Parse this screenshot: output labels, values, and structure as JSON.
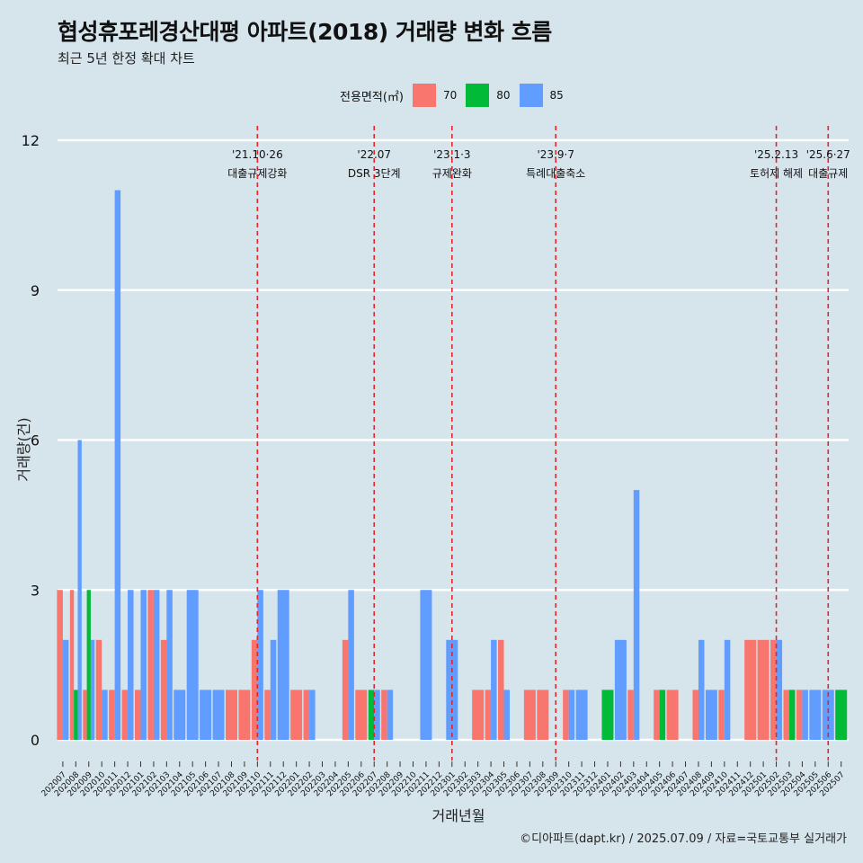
{
  "title": "협성휴포레경산대평 아파트(2018) 거래량 변화 흐름",
  "subtitle": "최근 5년 한정 확대 차트",
  "caption": "©디아파트(dapt.kr) / 2025.07.09 / 자료=국토교통부 실거래가",
  "legend": {
    "title": "전용면적(㎡)",
    "items": [
      {
        "label": "70",
        "color": "#f8766d"
      },
      {
        "label": "80",
        "color": "#00ba38"
      },
      {
        "label": "85",
        "color": "#619cff"
      }
    ]
  },
  "chart_data": {
    "type": "bar",
    "xlabel": "거래년월",
    "ylabel": "거래량(건)",
    "ylim": [
      0,
      12
    ],
    "yticks": [
      0,
      3,
      6,
      9,
      12
    ],
    "grid": true,
    "legend_position": "top",
    "categories": [
      "202007",
      "202008",
      "202009",
      "202010",
      "202011",
      "202012",
      "202101",
      "202102",
      "202103",
      "202104",
      "202105",
      "202106",
      "202107",
      "202108",
      "202109",
      "202110",
      "202111",
      "202112",
      "202201",
      "202202",
      "202203",
      "202204",
      "202205",
      "202206",
      "202207",
      "202208",
      "202209",
      "202210",
      "202211",
      "202212",
      "202301",
      "202302",
      "202303",
      "202304",
      "202305",
      "202306",
      "202307",
      "202308",
      "202309",
      "202310",
      "202311",
      "202312",
      "202401",
      "202402",
      "202403",
      "202404",
      "202405",
      "202406",
      "202407",
      "202408",
      "202409",
      "202410",
      "202411",
      "202412",
      "202501",
      "202502",
      "202503",
      "202504",
      "202505",
      "202506",
      "202507"
    ],
    "series": [
      {
        "name": "70",
        "color": "#f8766d",
        "values": [
          3,
          3,
          1,
          2,
          1,
          1,
          1,
          3,
          2,
          0,
          0,
          0,
          0,
          1,
          1,
          2,
          1,
          0,
          1,
          1,
          0,
          0,
          2,
          1,
          0,
          1,
          0,
          0,
          0,
          0,
          0,
          0,
          1,
          1,
          2,
          0,
          1,
          1,
          0,
          1,
          0,
          0,
          0,
          0,
          1,
          0,
          1,
          1,
          0,
          1,
          0,
          1,
          0,
          2,
          2,
          2,
          1,
          1,
          0,
          0,
          0
        ]
      },
      {
        "name": "80",
        "color": "#00ba38",
        "values": [
          0,
          1,
          3,
          0,
          0,
          0,
          0,
          0,
          0,
          0,
          0,
          0,
          0,
          0,
          0,
          0,
          0,
          0,
          0,
          0,
          0,
          0,
          0,
          0,
          1,
          0,
          0,
          0,
          0,
          0,
          0,
          0,
          0,
          0,
          0,
          0,
          0,
          0,
          0,
          0,
          0,
          0,
          1,
          0,
          0,
          0,
          1,
          0,
          0,
          0,
          0,
          0,
          0,
          0,
          0,
          0,
          1,
          0,
          0,
          0,
          1
        ]
      },
      {
        "name": "85",
        "color": "#619cff",
        "values": [
          2,
          6,
          2,
          1,
          11,
          3,
          3,
          3,
          3,
          1,
          3,
          1,
          1,
          0,
          0,
          3,
          2,
          3,
          0,
          1,
          0,
          0,
          3,
          0,
          1,
          1,
          0,
          0,
          3,
          0,
          2,
          0,
          0,
          2,
          1,
          0,
          0,
          0,
          0,
          1,
          1,
          0,
          0,
          2,
          5,
          0,
          0,
          0,
          0,
          2,
          1,
          2,
          0,
          0,
          0,
          2,
          0,
          1,
          1,
          1,
          0
        ]
      }
    ],
    "events": [
      {
        "date": "'21.10·26",
        "label": "대출규제강화",
        "category": "202110"
      },
      {
        "date": "'22.07",
        "label": "DSR 3단계",
        "category": "202207"
      },
      {
        "date": "'23.1·3",
        "label": "규제완화",
        "category": "202301"
      },
      {
        "date": "'23.9·7",
        "label": "특례대출축소",
        "category": "202309"
      },
      {
        "date": "'25.2.13",
        "label": "토허제 해제",
        "category": "202502"
      },
      {
        "date": "'25.6·27",
        "label": "대출규제",
        "category": "202506"
      }
    ]
  }
}
